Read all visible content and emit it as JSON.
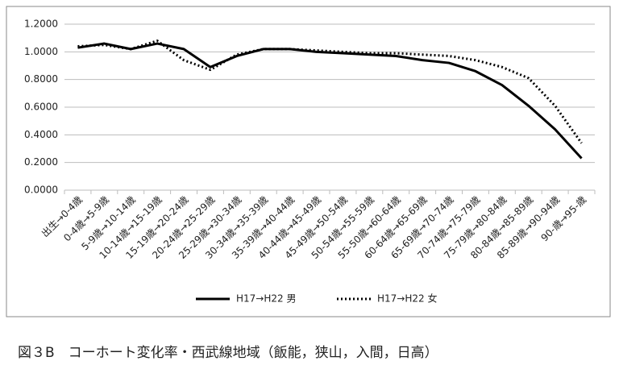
{
  "chart_data": {
    "type": "line",
    "caption": "図３B　コーホート変化率・西武線地域（飯能，狭山，入間，日高）",
    "categories": [
      "出生→0-4歳",
      "0-4歳→5-9歳",
      "5-9歳→10-14歳",
      "10-14歳→15-19歳",
      "15-19歳→20-24歳",
      "20-24歳→25-29歳",
      "25-29歳→30-34歳",
      "30-34歳→35-39歳",
      "35-39歳→40-44歳",
      "40-44歳→45-49歳",
      "45-49歳→50-54歳",
      "50-54歳→55-59歳",
      "55-50歳→60-64歳",
      "60-64歳→65-69歳",
      "65-69歳→70-74歳",
      "70-74歳→75-79歳",
      "75-79歳→80-84歳",
      "80-84歳→85-89歳",
      "85-89歳→90-94歳",
      "90-歳→95-歳"
    ],
    "series": [
      {
        "name": "H17→H22 男",
        "color": "#000000",
        "style": "solid",
        "values": [
          1.03,
          1.06,
          1.02,
          1.06,
          1.02,
          0.89,
          0.97,
          1.02,
          1.02,
          1.0,
          0.99,
          0.98,
          0.97,
          0.94,
          0.92,
          0.86,
          0.76,
          0.61,
          0.44,
          0.23
        ]
      },
      {
        "name": "H17→H22 女",
        "color": "#000000",
        "style": "dotted",
        "values": [
          1.04,
          1.05,
          1.02,
          1.08,
          0.94,
          0.87,
          0.98,
          1.02,
          1.02,
          1.01,
          1.0,
          0.99,
          0.99,
          0.98,
          0.97,
          0.94,
          0.89,
          0.81,
          0.61,
          0.34
        ]
      }
    ],
    "ylim": [
      0,
      1.2
    ],
    "yticks": [
      {
        "value": 0,
        "label": "0.0000"
      },
      {
        "value": 0.2,
        "label": "0.2000"
      },
      {
        "value": 0.4,
        "label": "0.4000"
      },
      {
        "value": 0.6,
        "label": "0.6000"
      },
      {
        "value": 0.8,
        "label": "0.8000"
      },
      {
        "value": 1,
        "label": "1.0000"
      },
      {
        "value": 1.2,
        "label": "1.2000"
      }
    ],
    "grid": true,
    "legend": "bottom"
  }
}
